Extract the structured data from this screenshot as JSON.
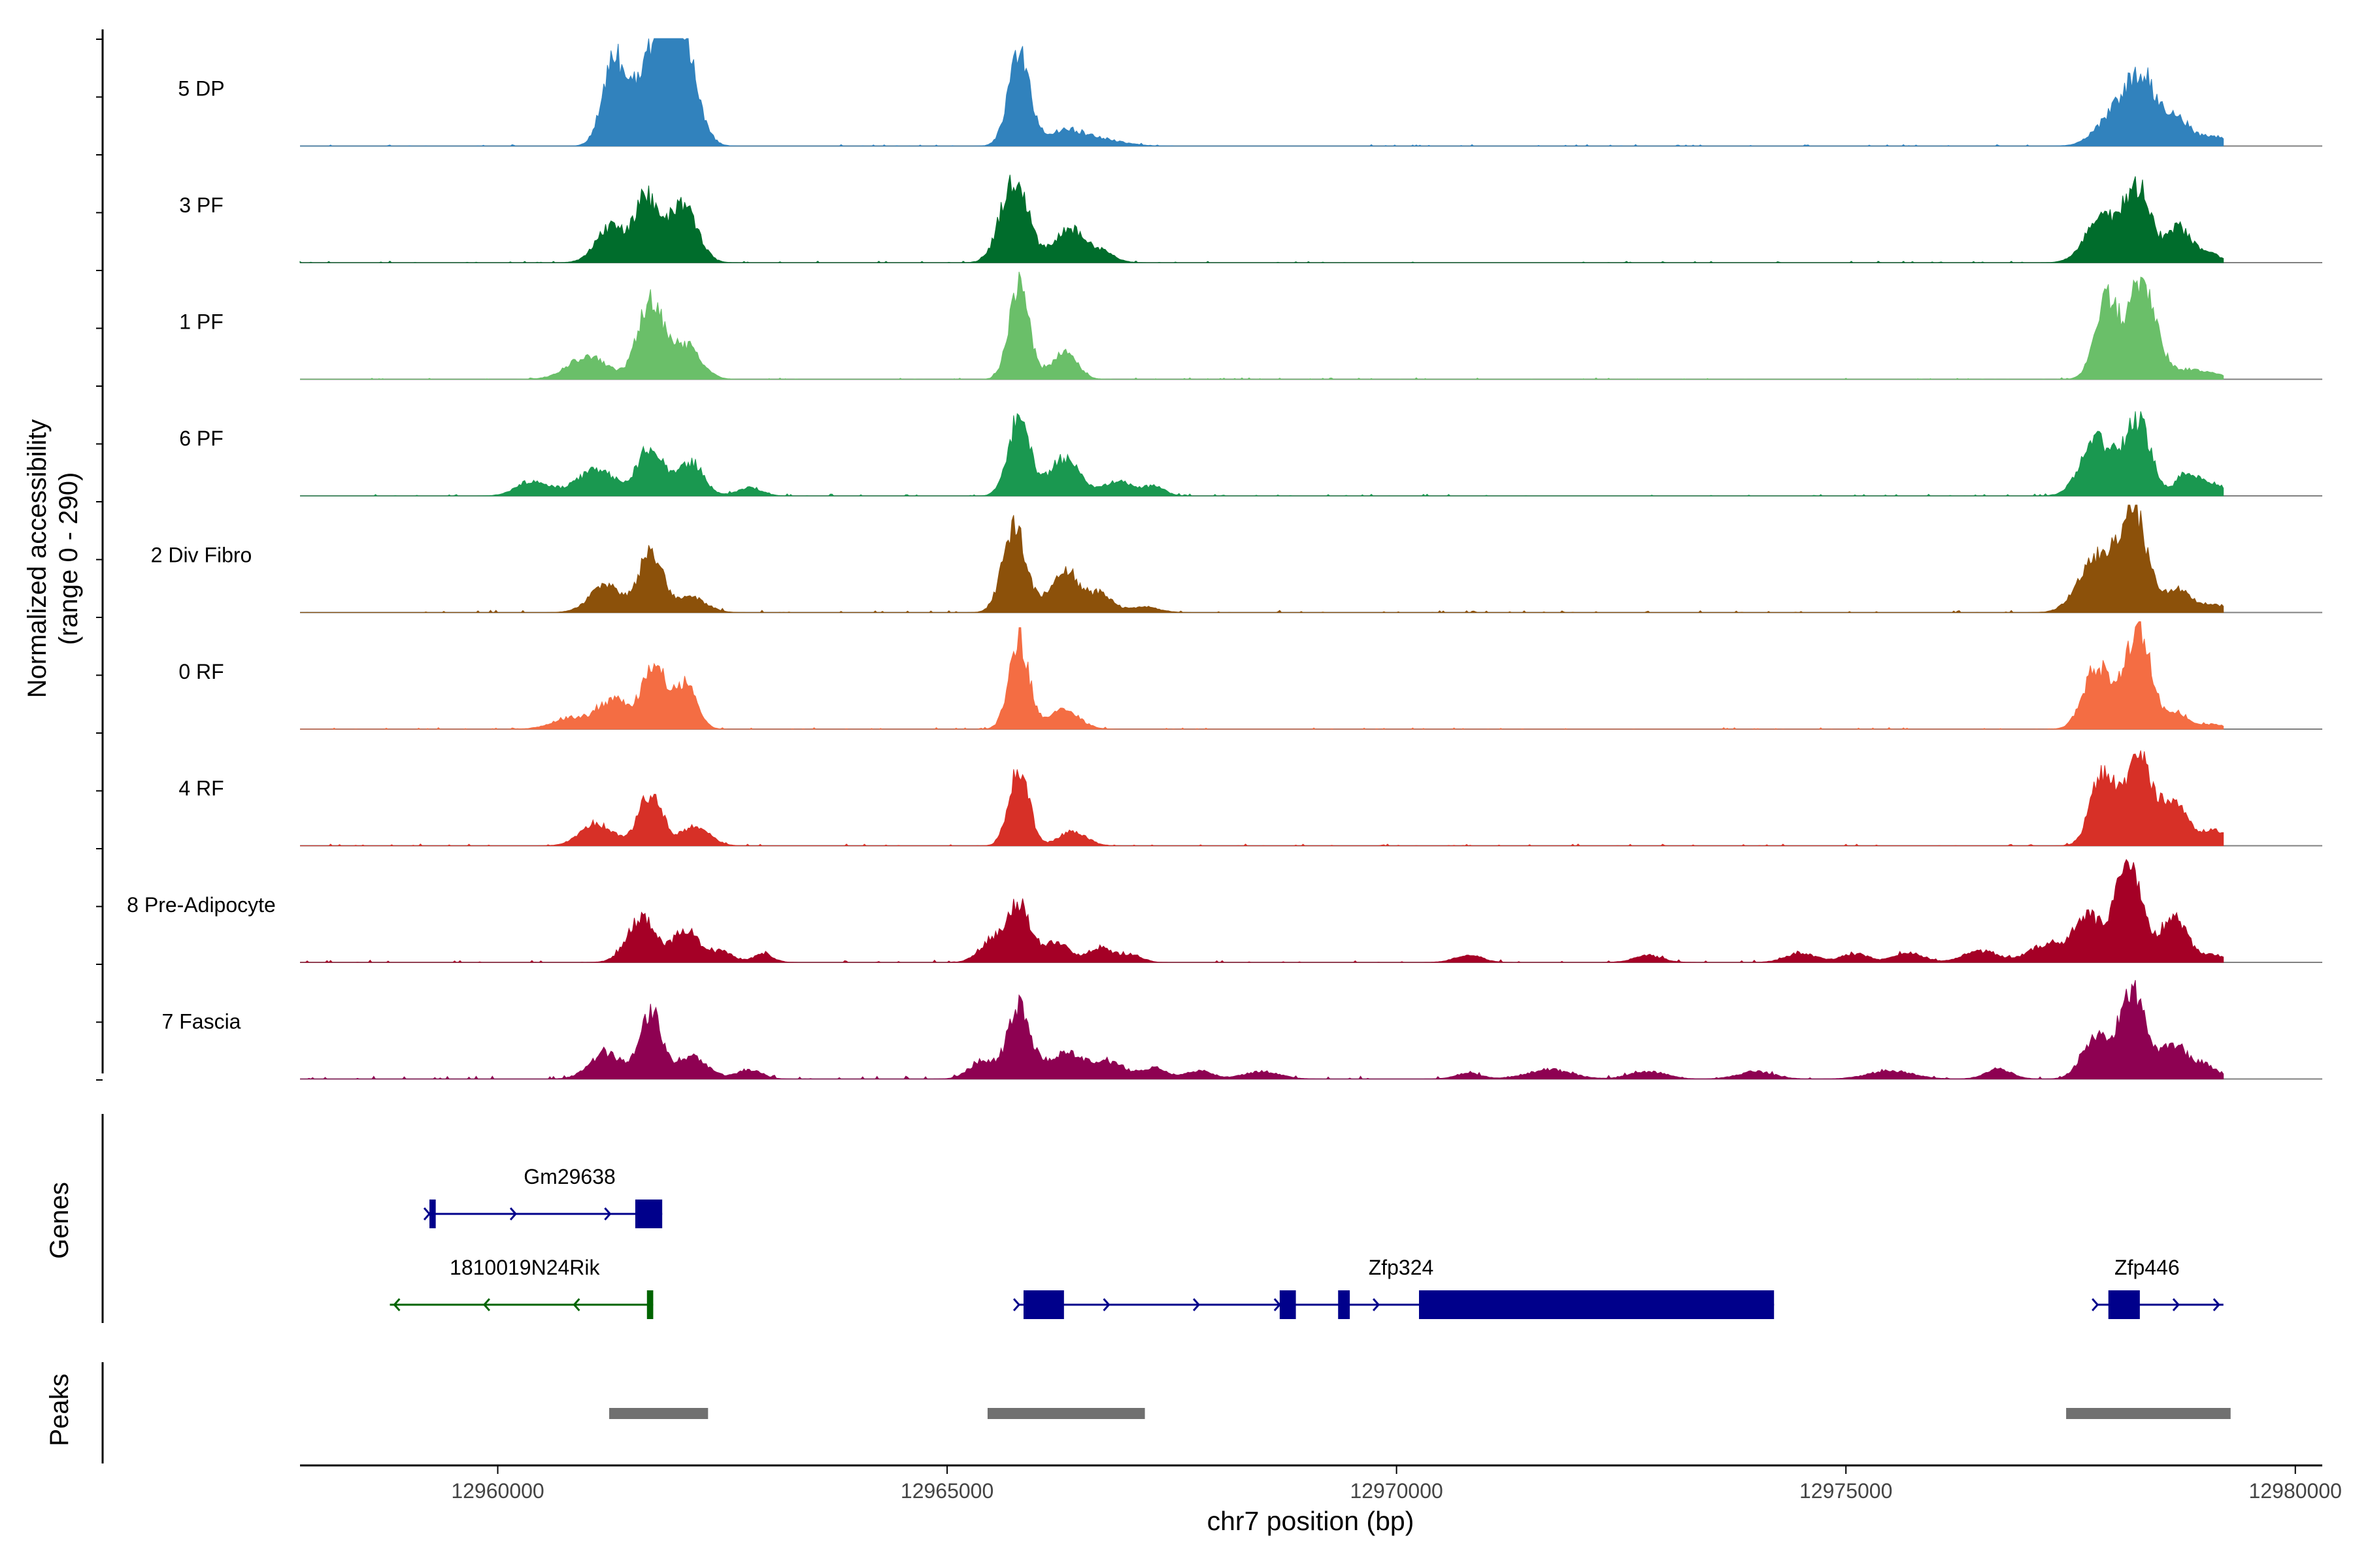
{
  "chart_data": {
    "type": "area",
    "genomic_range_bp": [
      12957800,
      12980300
    ],
    "y_axis_label_line1": "Normalized accessibility",
    "y_axis_label_line2": "(range 0 - 290)",
    "ylim": [
      0,
      290
    ],
    "x_axis_label": "chr7 position (bp)",
    "x_ticks": [
      12960000,
      12965000,
      12970000,
      12975000,
      12980000
    ],
    "x_tick_labels": [
      "12960000",
      "12965000",
      "12970000",
      "12975000",
      "12980000"
    ],
    "track_range_bp": [
      12957800,
      12979200
    ],
    "tracks": [
      {
        "name": "5 DP",
        "color": "#3182bd",
        "peaks": [
          [
            12961300,
            130,
            230
          ],
          [
            12961750,
            180,
            270
          ],
          [
            12962050,
            160,
            270
          ],
          [
            12965800,
            120,
            240
          ],
          [
            12966300,
            200,
            40
          ],
          [
            12966700,
            250,
            18
          ],
          [
            12978000,
            200,
            85
          ],
          [
            12978300,
            160,
            170
          ],
          [
            12978700,
            150,
            70
          ],
          [
            12979100,
            120,
            25
          ]
        ],
        "noise": 4
      },
      {
        "name": "3 PF",
        "color": "#006d2c",
        "peaks": [
          [
            12961250,
            160,
            95
          ],
          [
            12961650,
            130,
            170
          ],
          [
            12962050,
            160,
            160
          ],
          [
            12965750,
            150,
            230
          ],
          [
            12966350,
            160,
            90
          ],
          [
            12966700,
            150,
            30
          ],
          [
            12977850,
            180,
            120
          ],
          [
            12978250,
            150,
            200
          ],
          [
            12978700,
            120,
            90
          ],
          [
            12979000,
            140,
            30
          ]
        ],
        "noise": 4
      },
      {
        "name": "1 PF",
        "color": "#6abf69",
        "peaks": [
          [
            12961000,
            220,
            60
          ],
          [
            12961700,
            140,
            210
          ],
          [
            12962100,
            160,
            90
          ],
          [
            12965800,
            110,
            260
          ],
          [
            12966300,
            140,
            70
          ],
          [
            12977900,
            130,
            210
          ],
          [
            12978300,
            150,
            270
          ],
          [
            12978800,
            160,
            25
          ],
          [
            12979100,
            120,
            12
          ]
        ],
        "noise": 4
      },
      {
        "name": "6 PF",
        "color": "#1a9850",
        "peaks": [
          [
            12960400,
            180,
            40
          ],
          [
            12961100,
            220,
            70
          ],
          [
            12961700,
            140,
            130
          ],
          [
            12962150,
            140,
            90
          ],
          [
            12962800,
            140,
            22
          ],
          [
            12965800,
            120,
            210
          ],
          [
            12966300,
            170,
            100
          ],
          [
            12966900,
            160,
            40
          ],
          [
            12967300,
            120,
            25
          ],
          [
            12977800,
            180,
            150
          ],
          [
            12978250,
            140,
            200
          ],
          [
            12978800,
            130,
            60
          ],
          [
            12979100,
            140,
            30
          ]
        ],
        "noise": 5
      },
      {
        "name": "2 Div Fibro",
        "color": "#8c510a",
        "peaks": [
          [
            12961200,
            180,
            70
          ],
          [
            12961700,
            130,
            165
          ],
          [
            12962150,
            170,
            40
          ],
          [
            12965750,
            130,
            230
          ],
          [
            12966300,
            150,
            120
          ],
          [
            12966700,
            140,
            50
          ],
          [
            12967200,
            160,
            15
          ],
          [
            12977800,
            200,
            150
          ],
          [
            12978200,
            150,
            270
          ],
          [
            12978700,
            150,
            60
          ],
          [
            12979100,
            130,
            20
          ]
        ],
        "noise": 6
      },
      {
        "name": "0 RF",
        "color": "#f46d43",
        "peaks": [
          [
            12960800,
            200,
            30
          ],
          [
            12961300,
            180,
            80
          ],
          [
            12961750,
            130,
            170
          ],
          [
            12962100,
            120,
            120
          ],
          [
            12965800,
            110,
            240
          ],
          [
            12966300,
            170,
            50
          ],
          [
            12977800,
            150,
            170
          ],
          [
            12978250,
            140,
            270
          ],
          [
            12978700,
            140,
            40
          ],
          [
            12979100,
            120,
            12
          ]
        ],
        "noise": 4
      },
      {
        "name": "4 RF",
        "color": "#d73027",
        "peaks": [
          [
            12961100,
            180,
            60
          ],
          [
            12961700,
            130,
            140
          ],
          [
            12962200,
            160,
            50
          ],
          [
            12965800,
            110,
            210
          ],
          [
            12966400,
            150,
            40
          ],
          [
            12977850,
            130,
            190
          ],
          [
            12978250,
            150,
            250
          ],
          [
            12978650,
            150,
            110
          ],
          [
            12979100,
            140,
            40
          ]
        ],
        "noise": 5
      },
      {
        "name": "8 Pre-Adipocyte",
        "color": "#a50026",
        "peaks": [
          [
            12961600,
            160,
            120
          ],
          [
            12962100,
            140,
            90
          ],
          [
            12962500,
            120,
            30
          ],
          [
            12962950,
            110,
            22
          ],
          [
            12965500,
            140,
            60
          ],
          [
            12965800,
            120,
            150
          ],
          [
            12966200,
            150,
            55
          ],
          [
            12966700,
            140,
            40
          ],
          [
            12967050,
            120,
            20
          ],
          [
            12970800,
            150,
            20
          ],
          [
            12972800,
            160,
            18
          ],
          [
            12974500,
            170,
            25
          ],
          [
            12975100,
            160,
            22
          ],
          [
            12975700,
            160,
            25
          ],
          [
            12976500,
            200,
            30
          ],
          [
            12977200,
            180,
            45
          ],
          [
            12977700,
            180,
            120
          ],
          [
            12978150,
            140,
            270
          ],
          [
            12978650,
            150,
            120
          ],
          [
            12979100,
            120,
            20
          ]
        ],
        "noise": 6
      },
      {
        "name": "7 Fascia",
        "color": "#8e0152",
        "peaks": [
          [
            12961200,
            180,
            70
          ],
          [
            12961700,
            120,
            180
          ],
          [
            12962150,
            180,
            60
          ],
          [
            12962800,
            140,
            25
          ],
          [
            12965400,
            150,
            50
          ],
          [
            12965800,
            120,
            200
          ],
          [
            12966300,
            200,
            70
          ],
          [
            12966800,
            180,
            45
          ],
          [
            12967300,
            140,
            30
          ],
          [
            12967800,
            150,
            22
          ],
          [
            12968500,
            200,
            20
          ],
          [
            12970800,
            150,
            15
          ],
          [
            12971700,
            250,
            25
          ],
          [
            12972800,
            200,
            20
          ],
          [
            12974000,
            200,
            20
          ],
          [
            12975500,
            250,
            22
          ],
          [
            12976700,
            150,
            25
          ],
          [
            12977800,
            160,
            120
          ],
          [
            12978200,
            140,
            230
          ],
          [
            12978650,
            150,
            90
          ],
          [
            12979000,
            140,
            35
          ]
        ],
        "noise": 8
      }
    ],
    "genes_label": "Genes",
    "genes": [
      {
        "name": "Gm29638",
        "strand": "+",
        "color": "#00008b",
        "row": 0,
        "start": 12959240,
        "end": 12961830,
        "label_x": 12960800,
        "exons": [
          [
            12959240,
            12959310
          ],
          [
            12961530,
            12961830
          ]
        ],
        "arrows": [
          12959240,
          12960200,
          12961250
        ]
      },
      {
        "name": "1810019N24Rik",
        "strand": "-",
        "color": "#006400",
        "row": 1,
        "start": 12958800,
        "end": 12961730,
        "label_x": 12960300,
        "exons": [
          [
            12961660,
            12961730
          ]
        ],
        "arrows": [
          12958850,
          12959850,
          12960850
        ]
      },
      {
        "name": "Zfp324",
        "strand": "+",
        "color": "#00008b",
        "row": 1,
        "start": 12965800,
        "end": 12974200,
        "label_x": 12970050,
        "exons": [
          [
            12965850,
            12966300
          ],
          [
            12968700,
            12968880
          ],
          [
            12969350,
            12969480
          ],
          [
            12970250,
            12974200
          ]
        ],
        "arrows": [
          12965800,
          12966800,
          12967800,
          12968700,
          12969800
        ]
      },
      {
        "name": "Zfp446",
        "strand": "+",
        "color": "#00008b",
        "row": 1,
        "start": 12977800,
        "end": 12979200,
        "label_x": 12978350,
        "exons": [
          [
            12977920,
            12978270
          ]
        ],
        "arrows": [
          12977800,
          12978700,
          12979150
        ]
      }
    ],
    "peaks_label": "Peaks",
    "peak_regions": [
      [
        12961240,
        12962340
      ],
      [
        12965450,
        12967200
      ],
      [
        12977450,
        12979280
      ]
    ]
  }
}
